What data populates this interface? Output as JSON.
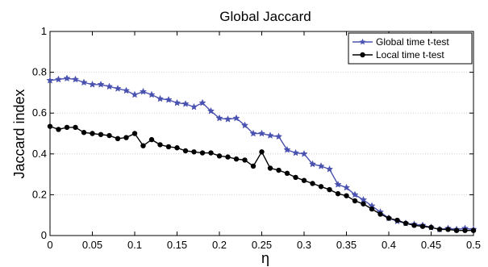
{
  "chart_data": {
    "type": "line",
    "title": "Global Jaccard",
    "xlabel": "η",
    "ylabel": "Jaccard index",
    "xlim": [
      0,
      0.5
    ],
    "ylim": [
      0,
      1
    ],
    "grid": "horizontal-dotted",
    "legend_position": "top-right",
    "x_ticks": [
      "0",
      "0.05",
      "0.1",
      "0.15",
      "0.2",
      "0.25",
      "0.3",
      "0.35",
      "0.4",
      "0.45",
      "0.5"
    ],
    "y_ticks": [
      "0",
      "0.2",
      "0.4",
      "0.6",
      "0.8",
      "1"
    ],
    "x": [
      0,
      0.01,
      0.02,
      0.03,
      0.04,
      0.05,
      0.06,
      0.07,
      0.08,
      0.09,
      0.1,
      0.11,
      0.12,
      0.13,
      0.14,
      0.15,
      0.16,
      0.17,
      0.18,
      0.19,
      0.2,
      0.21,
      0.22,
      0.23,
      0.24,
      0.25,
      0.26,
      0.27,
      0.28,
      0.29,
      0.3,
      0.31,
      0.32,
      0.33,
      0.34,
      0.35,
      0.36,
      0.37,
      0.38,
      0.39,
      0.4,
      0.41,
      0.42,
      0.43,
      0.44,
      0.45,
      0.46,
      0.47,
      0.48,
      0.49,
      0.5
    ],
    "series": [
      {
        "name": "Global time t-test",
        "color": "#4a52b0",
        "marker": "star",
        "values": [
          0.76,
          0.765,
          0.77,
          0.765,
          0.75,
          0.74,
          0.74,
          0.73,
          0.72,
          0.71,
          0.69,
          0.705,
          0.69,
          0.67,
          0.665,
          0.65,
          0.645,
          0.63,
          0.65,
          0.61,
          0.575,
          0.57,
          0.575,
          0.54,
          0.5,
          0.5,
          0.49,
          0.485,
          0.42,
          0.405,
          0.4,
          0.35,
          0.34,
          0.325,
          0.25,
          0.235,
          0.2,
          0.175,
          0.145,
          0.115,
          0.085,
          0.07,
          0.06,
          0.055,
          0.05,
          0.04,
          0.03,
          0.035,
          0.03,
          0.035,
          0.03
        ]
      },
      {
        "name": "Local time t-test",
        "color": "#000000",
        "marker": "circle",
        "values": [
          0.535,
          0.52,
          0.53,
          0.53,
          0.505,
          0.5,
          0.495,
          0.49,
          0.475,
          0.48,
          0.5,
          0.44,
          0.47,
          0.445,
          0.435,
          0.43,
          0.415,
          0.41,
          0.405,
          0.405,
          0.39,
          0.385,
          0.375,
          0.37,
          0.34,
          0.41,
          0.33,
          0.32,
          0.305,
          0.285,
          0.27,
          0.255,
          0.24,
          0.225,
          0.205,
          0.195,
          0.17,
          0.155,
          0.13,
          0.105,
          0.085,
          0.075,
          0.06,
          0.05,
          0.045,
          0.04,
          0.03,
          0.03,
          0.025,
          0.025,
          0.025
        ]
      }
    ]
  }
}
